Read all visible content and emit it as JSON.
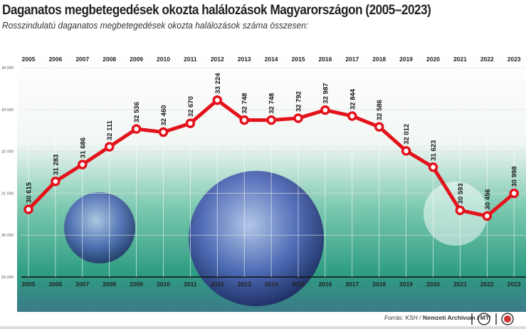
{
  "title": "Daganatos megbetegedések okozta halálozások Magyarországon (2005–2023)",
  "subtitle": "Rosszindulatú daganatos megbetegedések okozta halálozások száma összesen:",
  "footer": {
    "source_prefix": "Forrás: KSH / ",
    "source_bold": "Nemzeti Archívum / MTI",
    "logo1": "MTVA",
    "logo2": "MTI",
    "cut": "w"
  },
  "colors": {
    "line": "#e3121b",
    "bg1": "#2fa78a",
    "bg2": "#ffffff"
  },
  "chart_data": {
    "type": "line",
    "title": "Daganatos megbetegedések okozta halálozások Magyarországon (2005–2023)",
    "x": [
      "2005",
      "2006",
      "2007",
      "2008",
      "2009",
      "2010",
      "2011",
      "2012",
      "2013",
      "2014",
      "2015",
      "2016",
      "2017",
      "2018",
      "2019",
      "2020",
      "2021",
      "2022",
      "2023"
    ],
    "values": [
      30615,
      31283,
      31686,
      32111,
      32536,
      32460,
      32670,
      33224,
      32748,
      32748,
      32792,
      32987,
      32844,
      32586,
      32012,
      31623,
      30593,
      30456,
      30998
    ],
    "labels": [
      "30 615",
      "31 283",
      "31 686",
      "32 111",
      "32 536",
      "32 460",
      "32 670",
      "33 224",
      "32 748",
      "32 748",
      "32 792",
      "32 987",
      "32 844",
      "32 586",
      "32 012",
      "31 623",
      "30 593",
      "30 456",
      "30 998"
    ],
    "yticks": [
      "29 000",
      "30 000",
      "31 000",
      "32 000",
      "33 000",
      "34 000"
    ],
    "ylim": [
      29000,
      34000
    ],
    "grid": true
  }
}
